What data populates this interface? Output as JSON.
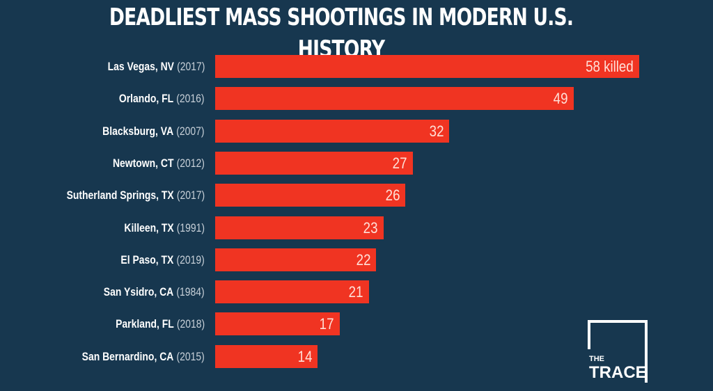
{
  "chart_data": {
    "type": "bar",
    "orientation": "horizontal",
    "title": "DEADLIEST MASS SHOOTINGS IN MODERN U.S. HISTORY",
    "xlabel": "",
    "ylabel": "",
    "unit_suffix_first": " killed",
    "categories": [
      {
        "place": "Las Vegas, NV",
        "year": "(2017)"
      },
      {
        "place": "Orlando, FL",
        "year": "(2016)"
      },
      {
        "place": "Blacksburg, VA",
        "year": "(2007)"
      },
      {
        "place": "Newtown, CT",
        "year": "(2012)"
      },
      {
        "place": "Sutherland Springs, TX",
        "year": "(2017)"
      },
      {
        "place": "Killeen, TX",
        "year": "(1991)"
      },
      {
        "place": "El Paso, TX",
        "year": "(2019)"
      },
      {
        "place": "San Ysidro, CA",
        "year": "(1984)"
      },
      {
        "place": "Parkland, FL",
        "year": "(2018)"
      },
      {
        "place": "San Bernardino, CA",
        "year": "(2015)"
      }
    ],
    "values": [
      58,
      49,
      32,
      27,
      26,
      23,
      22,
      21,
      17,
      14
    ],
    "value_labels": [
      "58 killed",
      "49",
      "32",
      "27",
      "26",
      "23",
      "22",
      "21",
      "17",
      "14"
    ],
    "xlim": [
      0,
      58
    ],
    "grid": false,
    "legend": "none",
    "bar_color": "#f03422",
    "background": "#17374f"
  },
  "logo": {
    "line1": "THE",
    "line2": "TRACE"
  }
}
